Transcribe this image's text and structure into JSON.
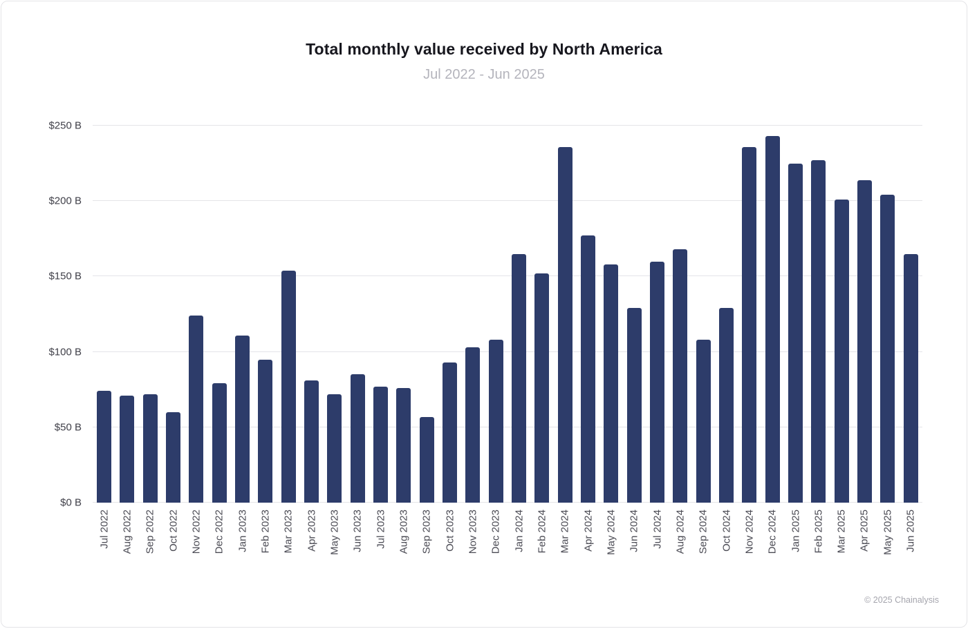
{
  "page": {
    "attribution": "© 2025 Chainalysis"
  },
  "chart_data": {
    "type": "bar",
    "title": "Total monthly value received by North America",
    "subtitle": "Jul 2022 - Jun 2025",
    "categories": [
      "Jul 2022",
      "Aug 2022",
      "Sep 2022",
      "Oct 2022",
      "Nov 2022",
      "Dec 2022",
      "Jan 2023",
      "Feb 2023",
      "Mar 2023",
      "Apr 2023",
      "May 2023",
      "Jun 2023",
      "Jul 2023",
      "Aug 2023",
      "Sep 2023",
      "Oct 2023",
      "Nov 2023",
      "Dec 2023",
      "Jan 2024",
      "Feb 2024",
      "Mar 2024",
      "Apr 2024",
      "May 2024",
      "Jun 2024",
      "Jul 2024",
      "Aug 2024",
      "Sep 2024",
      "Oct 2024",
      "Nov 2024",
      "Dec 2024",
      "Jan 2025",
      "Feb 2025",
      "Mar 2025",
      "Apr 2025",
      "May 2025",
      "Jun 2025"
    ],
    "values": [
      74,
      71,
      72,
      60,
      124,
      79,
      111,
      95,
      154,
      81,
      72,
      85,
      77,
      76,
      57,
      93,
      103,
      108,
      165,
      152,
      236,
      177,
      158,
      129,
      160,
      168,
      108,
      129,
      236,
      243,
      225,
      227,
      201,
      214,
      204,
      165
    ],
    "unit": "billion USD",
    "xlabel": "",
    "ylabel": "",
    "ylim": [
      0,
      250
    ],
    "yticks": [
      0,
      50,
      100,
      150,
      200,
      250
    ],
    "ytick_labels": [
      "$0 B",
      "$50 B",
      "$100 B",
      "$150 B",
      "$200 B",
      "$250 B"
    ],
    "grid": true,
    "legend": false,
    "bar_color": "#2d3c6a",
    "gridline_color": "#e4e4e8"
  }
}
